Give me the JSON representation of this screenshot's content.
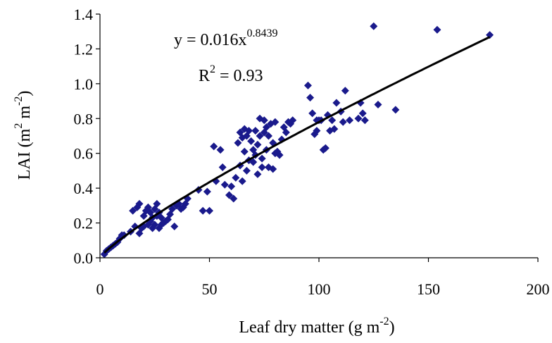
{
  "chart_data": {
    "type": "scatter",
    "title": "",
    "xlabel": {
      "pre": "Leaf dry matter (g m",
      "sup": "-2",
      "post": ")"
    },
    "ylabel": {
      "pre": "LAI (m",
      "sup1": "2",
      "mid": " m",
      "sup2": "-2",
      "post": ")"
    },
    "xlim": [
      0,
      200
    ],
    "ylim": [
      0,
      1.4
    ],
    "x_ticks": [
      "0",
      "50",
      "100",
      "150",
      "200"
    ],
    "y_ticks": [
      "0.0",
      "0.2",
      "0.4",
      "0.6",
      "0.8",
      "1.0",
      "1.2",
      "1.4"
    ],
    "grid": false,
    "legend": "none",
    "annotations": {
      "equation": {
        "base": "y = 0.016x",
        "exponent": "0.8439"
      },
      "r2": {
        "base": "R",
        "sup": "2",
        "post": " = 0.93"
      }
    },
    "trendline": {
      "type": "power",
      "coefficient": 0.016,
      "exponent": 0.8439,
      "x_range": [
        2,
        178
      ]
    },
    "colors": {
      "points": "#1a1a8c",
      "trendline": "#000000",
      "axes": "#000000"
    },
    "points": [
      [
        2,
        0.02
      ],
      [
        3,
        0.04
      ],
      [
        4,
        0.05
      ],
      [
        5,
        0.06
      ],
      [
        6,
        0.07
      ],
      [
        7,
        0.08
      ],
      [
        8,
        0.09
      ],
      [
        9,
        0.11
      ],
      [
        10,
        0.13
      ],
      [
        11,
        0.13
      ],
      [
        14,
        0.15
      ],
      [
        15,
        0.27
      ],
      [
        16,
        0.18
      ],
      [
        17,
        0.29
      ],
      [
        18,
        0.31
      ],
      [
        18,
        0.14
      ],
      [
        19,
        0.17
      ],
      [
        20,
        0.18
      ],
      [
        20,
        0.24
      ],
      [
        21,
        0.27
      ],
      [
        22,
        0.19
      ],
      [
        22,
        0.29
      ],
      [
        23,
        0.21
      ],
      [
        23,
        0.26
      ],
      [
        24,
        0.17
      ],
      [
        24,
        0.23
      ],
      [
        25,
        0.28
      ],
      [
        25,
        0.19
      ],
      [
        26,
        0.31
      ],
      [
        26,
        0.24
      ],
      [
        27,
        0.17
      ],
      [
        27,
        0.26
      ],
      [
        28,
        0.23
      ],
      [
        28,
        0.19
      ],
      [
        29,
        0.2
      ],
      [
        30,
        0.21
      ],
      [
        31,
        0.22
      ],
      [
        32,
        0.25
      ],
      [
        33,
        0.28
      ],
      [
        34,
        0.18
      ],
      [
        35,
        0.3
      ],
      [
        36,
        0.31
      ],
      [
        37,
        0.28
      ],
      [
        38,
        0.29
      ],
      [
        39,
        0.31
      ],
      [
        40,
        0.34
      ],
      [
        45,
        0.39
      ],
      [
        47,
        0.27
      ],
      [
        49,
        0.38
      ],
      [
        50,
        0.27
      ],
      [
        52,
        0.64
      ],
      [
        53,
        0.44
      ],
      [
        55,
        0.62
      ],
      [
        56,
        0.52
      ],
      [
        57,
        0.42
      ],
      [
        59,
        0.36
      ],
      [
        60,
        0.41
      ],
      [
        61,
        0.34
      ],
      [
        62,
        0.46
      ],
      [
        63,
        0.66
      ],
      [
        64,
        0.72
      ],
      [
        64,
        0.53
      ],
      [
        65,
        0.69
      ],
      [
        65,
        0.44
      ],
      [
        66,
        0.74
      ],
      [
        66,
        0.61
      ],
      [
        67,
        0.7
      ],
      [
        67,
        0.5
      ],
      [
        68,
        0.56
      ],
      [
        68,
        0.73
      ],
      [
        69,
        0.67
      ],
      [
        70,
        0.62
      ],
      [
        70,
        0.55
      ],
      [
        71,
        0.59
      ],
      [
        71,
        0.73
      ],
      [
        72,
        0.65
      ],
      [
        72,
        0.48
      ],
      [
        73,
        0.7
      ],
      [
        73,
        0.8
      ],
      [
        74,
        0.57
      ],
      [
        74,
        0.52
      ],
      [
        75,
        0.72
      ],
      [
        75,
        0.79
      ],
      [
        76,
        0.62
      ],
      [
        76,
        0.75
      ],
      [
        77,
        0.7
      ],
      [
        77,
        0.52
      ],
      [
        78,
        0.77
      ],
      [
        79,
        0.66
      ],
      [
        79,
        0.51
      ],
      [
        80,
        0.78
      ],
      [
        80,
        0.6
      ],
      [
        81,
        0.61
      ],
      [
        82,
        0.59
      ],
      [
        83,
        0.68
      ],
      [
        84,
        0.75
      ],
      [
        85,
        0.72
      ],
      [
        86,
        0.78
      ],
      [
        87,
        0.77
      ],
      [
        88,
        0.79
      ],
      [
        95,
        0.99
      ],
      [
        96,
        0.92
      ],
      [
        97,
        0.83
      ],
      [
        98,
        0.71
      ],
      [
        99,
        0.79
      ],
      [
        99,
        0.73
      ],
      [
        100,
        0.79
      ],
      [
        101,
        0.79
      ],
      [
        102,
        0.62
      ],
      [
        103,
        0.63
      ],
      [
        104,
        0.82
      ],
      [
        105,
        0.73
      ],
      [
        106,
        0.79
      ],
      [
        107,
        0.74
      ],
      [
        108,
        0.89
      ],
      [
        110,
        0.84
      ],
      [
        111,
        0.78
      ],
      [
        112,
        0.96
      ],
      [
        114,
        0.79
      ],
      [
        118,
        0.8
      ],
      [
        119,
        0.89
      ],
      [
        120,
        0.83
      ],
      [
        121,
        0.79
      ],
      [
        125,
        1.33
      ],
      [
        127,
        0.88
      ],
      [
        135,
        0.85
      ],
      [
        154,
        1.31
      ],
      [
        178,
        1.28
      ]
    ]
  }
}
